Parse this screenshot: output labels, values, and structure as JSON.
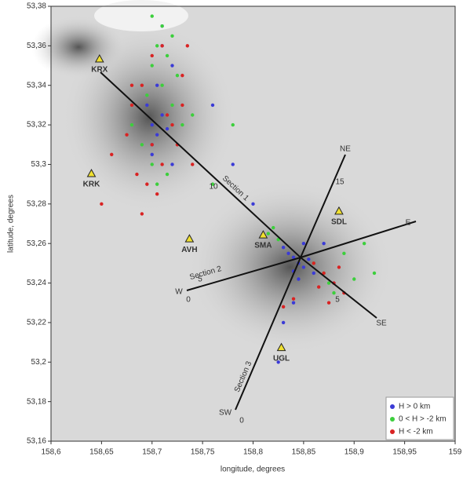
{
  "chart_data": {
    "type": "scatter",
    "xlabel": "longitude, degrees",
    "ylabel": "latitude, degrees",
    "xlim": [
      158.6,
      159
    ],
    "ylim": [
      53.16,
      53.38
    ],
    "xticks": [
      {
        "value": 158.6,
        "label": "158,6"
      },
      {
        "value": 158.65,
        "label": "158,65"
      },
      {
        "value": 158.7,
        "label": "158,7"
      },
      {
        "value": 158.75,
        "label": "158,75"
      },
      {
        "value": 158.8,
        "label": "158,8"
      },
      {
        "value": 158.85,
        "label": "158,85"
      },
      {
        "value": 158.9,
        "label": "158,9"
      },
      {
        "value": 158.95,
        "label": "158,95"
      },
      159
    ],
    "yticks": [
      {
        "value": 53.16,
        "label": "53,16"
      },
      {
        "value": 53.18,
        "label": "53,18"
      },
      {
        "value": 53.2,
        "label": "53,2"
      },
      {
        "value": 53.22,
        "label": "53,22"
      },
      {
        "value": 53.24,
        "label": "53,24"
      },
      {
        "value": 53.26,
        "label": "53,26"
      },
      {
        "value": 53.28,
        "label": "53,28"
      },
      {
        "value": 53.3,
        "label": "53,3"
      },
      {
        "value": 53.32,
        "label": "53,32"
      },
      {
        "value": 53.34,
        "label": "53,34"
      },
      {
        "value": 53.36,
        "label": "53,36"
      },
      {
        "value": 53.38,
        "label": "53,38"
      }
    ],
    "legend_position": "lower right",
    "series": [
      {
        "name": "H > 0 km",
        "color": "#3b3bd6",
        "x": [
          158.7,
          158.705,
          158.71,
          158.7,
          158.695,
          158.715,
          158.705,
          158.7,
          158.72,
          158.71,
          158.84,
          158.845,
          158.85,
          158.84,
          158.835,
          158.855,
          158.845,
          158.83,
          158.85,
          158.86,
          158.71,
          158.72,
          158.84,
          158.83,
          158.8,
          158.78,
          158.76,
          158.87,
          158.88,
          158.825
        ],
        "values": [
          53.32,
          53.315,
          53.325,
          53.31,
          53.33,
          53.318,
          53.34,
          53.305,
          53.35,
          53.36,
          53.253,
          53.25,
          53.248,
          53.246,
          53.255,
          53.252,
          53.242,
          53.258,
          53.26,
          53.245,
          53.37,
          53.3,
          53.23,
          53.22,
          53.28,
          53.3,
          53.33,
          53.26,
          53.24,
          53.2
        ]
      },
      {
        "name": "0 < H > -2 km",
        "color": "#3ccf3c",
        "x": [
          158.7,
          158.71,
          158.72,
          158.705,
          158.715,
          158.7,
          158.725,
          158.71,
          158.695,
          158.72,
          158.7,
          158.715,
          158.705,
          158.69,
          158.73,
          158.74,
          158.82,
          158.825,
          158.815,
          158.87,
          158.875,
          158.88,
          158.86,
          158.89,
          158.9,
          158.92,
          158.91,
          158.78,
          158.76,
          158.68
        ],
        "values": [
          53.375,
          53.37,
          53.365,
          53.36,
          53.355,
          53.35,
          53.345,
          53.34,
          53.335,
          53.33,
          53.3,
          53.295,
          53.29,
          53.31,
          53.32,
          53.325,
          53.268,
          53.262,
          53.265,
          53.245,
          53.24,
          53.235,
          53.25,
          53.255,
          53.242,
          53.245,
          53.26,
          53.32,
          53.29,
          53.32
        ]
      },
      {
        "name": "H < -2 km",
        "color": "#d92323",
        "x": [
          158.68,
          158.69,
          158.7,
          158.71,
          158.72,
          158.73,
          158.675,
          158.685,
          158.695,
          158.705,
          158.715,
          158.725,
          158.74,
          158.66,
          158.65,
          158.7,
          158.71,
          158.68,
          158.73,
          158.69,
          158.86,
          158.87,
          158.88,
          158.885,
          158.89,
          158.865,
          158.875,
          158.84,
          158.83,
          158.735
        ],
        "values": [
          53.33,
          53.34,
          53.31,
          53.3,
          53.32,
          53.345,
          53.315,
          53.295,
          53.29,
          53.285,
          53.325,
          53.31,
          53.3,
          53.305,
          53.28,
          53.355,
          53.36,
          53.34,
          53.33,
          53.275,
          53.25,
          53.245,
          53.24,
          53.248,
          53.235,
          53.238,
          53.23,
          53.232,
          53.228,
          53.36
        ]
      }
    ],
    "stations": [
      {
        "name": "KRX",
        "lon": 158.648,
        "lat": 53.353
      },
      {
        "name": "KRK",
        "lon": 158.64,
        "lat": 53.295
      },
      {
        "name": "AVH",
        "lon": 158.737,
        "lat": 53.262
      },
      {
        "name": "SMA",
        "lon": 158.81,
        "lat": 53.264
      },
      {
        "name": "SDL",
        "lon": 158.885,
        "lat": 53.276
      },
      {
        "name": "UGL",
        "lon": 158.828,
        "lat": 53.207
      }
    ],
    "annotations": [
      "Section 1",
      "Section 2",
      "Section 3",
      "NE",
      "E",
      "SE",
      "W",
      "SW",
      "10",
      "15",
      "5",
      "0",
      "5",
      "0"
    ]
  }
}
